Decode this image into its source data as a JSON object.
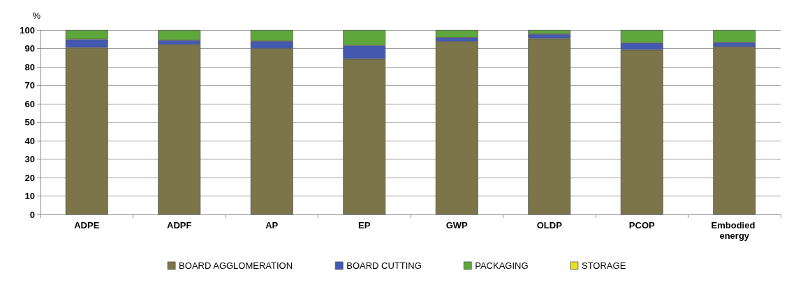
{
  "chart_data": {
    "type": "bar",
    "stacked": true,
    "ylabel": "%",
    "categories": [
      "ADPE",
      "ADPF",
      "AP",
      "EP",
      "GWP",
      "OLDP",
      "PCOP",
      "Embodied energy"
    ],
    "series": [
      {
        "name": "BOARD AGGLOMERATION",
        "color": "#7b7549",
        "values": [
          90.4,
          92,
          89.9,
          84.3,
          93.6,
          95.3,
          89.2,
          90.8
        ]
      },
      {
        "name": "BOARD CUTTING",
        "color": "#4459b0",
        "values": [
          4.5,
          2.4,
          4,
          7.3,
          2.3,
          2.5,
          3.8,
          2.4
        ]
      },
      {
        "name": "PACKAGING",
        "color": "#5ea73a",
        "values": [
          5.1,
          5.6,
          6.1,
          8.4,
          4.1,
          2.2,
          7,
          6.8
        ]
      },
      {
        "name": "STORAGE",
        "color": "#e8e21c",
        "values": [
          0,
          0,
          0,
          0,
          0,
          0,
          0,
          0
        ]
      }
    ],
    "ylim": [
      0,
      100
    ],
    "yticks": [
      0,
      10,
      20,
      30,
      40,
      50,
      60,
      70,
      80,
      90,
      100
    ],
    "grid": "y",
    "legend": "bottom"
  }
}
